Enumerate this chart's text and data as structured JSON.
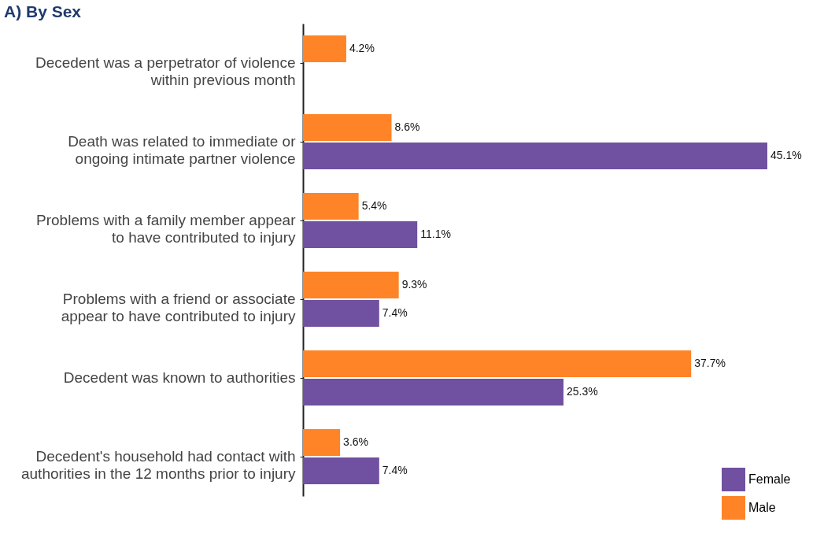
{
  "chart_data": {
    "type": "bar",
    "orientation": "horizontal",
    "title": "A) By Sex",
    "categories": [
      "Decedent was a perpetrator of violence within previous month",
      "Death was related to immediate or ongoing intimate partner violence",
      "Problems with a family member appear to have contributed to injury",
      "Problems with a friend or associate appear to have contributed to injury",
      "Decedent was known to authorities",
      "Decedent's household had contact with authorities in the 12 months prior to injury"
    ],
    "series": [
      {
        "name": "Female",
        "color": "#7050a0",
        "values": [
          null,
          45.1,
          11.1,
          7.4,
          25.3,
          7.4
        ],
        "value_labels": [
          null,
          "45.1%",
          "11.1%",
          "7.4%",
          "25.3%",
          "7.4%"
        ]
      },
      {
        "name": "Male",
        "color": "#ff8427",
        "values": [
          4.2,
          8.6,
          5.4,
          9.3,
          37.7,
          3.6
        ],
        "value_labels": [
          "4.2%",
          "8.6%",
          "5.4%",
          "9.3%",
          "37.7%",
          "3.6%"
        ]
      }
    ],
    "legend": "bottom right",
    "grid": false
  }
}
